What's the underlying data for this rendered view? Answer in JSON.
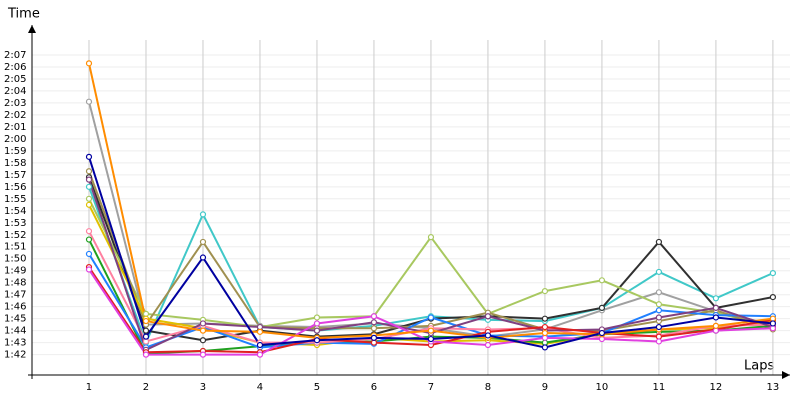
{
  "chart_data": {
    "type": "line",
    "y_label": "Time",
    "x_label": "Laps",
    "x": [
      1,
      2,
      3,
      4,
      5,
      6,
      7,
      8,
      9,
      10,
      11,
      12,
      13
    ],
    "xlim": [
      0,
      13.3
    ],
    "xticks": [
      1,
      2,
      3,
      4,
      5,
      6,
      7,
      8,
      9,
      10,
      11,
      12,
      13
    ],
    "ylim": [
      100.3,
      129.5
    ],
    "yticks": [
      {
        "value": 102,
        "label": "1:42"
      },
      {
        "value": 103,
        "label": "1:43"
      },
      {
        "value": 104,
        "label": "1:44"
      },
      {
        "value": 105,
        "label": "1:45"
      },
      {
        "value": 106,
        "label": "1:46"
      },
      {
        "value": 107,
        "label": "1:47"
      },
      {
        "value": 108,
        "label": "1:48"
      },
      {
        "value": 109,
        "label": "1:49"
      },
      {
        "value": 110,
        "label": "1:50"
      },
      {
        "value": 111,
        "label": "1:51"
      },
      {
        "value": 112,
        "label": "1:52"
      },
      {
        "value": 113,
        "label": "1:53"
      },
      {
        "value": 114,
        "label": "1:54"
      },
      {
        "value": 115,
        "label": "1:55"
      },
      {
        "value": 116,
        "label": "1:56"
      },
      {
        "value": 117,
        "label": "1:57"
      },
      {
        "value": 118,
        "label": "1:58"
      },
      {
        "value": 119,
        "label": "1:59"
      },
      {
        "value": 120,
        "label": "2:00"
      },
      {
        "value": 121,
        "label": "2:01"
      },
      {
        "value": 122,
        "label": "2:02"
      },
      {
        "value": 123,
        "label": "2:03"
      },
      {
        "value": 124,
        "label": "2:04"
      },
      {
        "value": 125,
        "label": "2:05"
      },
      {
        "value": 126,
        "label": "2:06"
      },
      {
        "value": 127,
        "label": "2:07"
      }
    ],
    "grid": true,
    "series": [
      {
        "color": "#a0a0a0",
        "values": [
          123.1,
          104.5,
          104.6,
          104.4,
          104.3,
          104.6,
          104.2,
          103.5,
          104.1,
          105.7,
          107.2,
          105.6,
          104.5
        ]
      },
      {
        "color": "#40c8c8",
        "values": [
          116.0,
          103.0,
          113.7,
          104.3,
          104.0,
          104.4,
          105.2,
          104.9,
          104.8,
          105.9,
          108.9,
          106.7,
          108.8
        ]
      },
      {
        "color": "#303030",
        "values": [
          116.8,
          104.0,
          103.2,
          104.0,
          103.5,
          103.7,
          105.0,
          105.2,
          105.0,
          105.9,
          111.4,
          105.9,
          106.8
        ]
      },
      {
        "color": "#a8c860",
        "values": [
          115.0,
          105.4,
          104.9,
          104.3,
          105.1,
          105.2,
          111.8,
          105.4,
          107.3,
          108.2,
          106.2,
          105.5,
          104.3
        ]
      },
      {
        "color": "#a09050",
        "values": [
          117.3,
          104.5,
          111.4,
          104.3,
          104.2,
          104.2,
          104.4,
          105.5,
          104.1,
          104.0,
          104.8,
          105.7,
          104.1
        ]
      },
      {
        "color": "#e0c000",
        "values": [
          114.5,
          105.0,
          104.2,
          103.0,
          102.8,
          103.4,
          103.1,
          103.2,
          102.9,
          103.7,
          104.1,
          104.2,
          104.8
        ]
      },
      {
        "color": "#20a020",
        "values": [
          111.6,
          102.1,
          102.3,
          102.7,
          103.0,
          103.1,
          103.5,
          103.4,
          103.0,
          103.7,
          103.9,
          104.0,
          104.4
        ]
      },
      {
        "color": "#2080ff",
        "values": [
          110.4,
          102.6,
          104.3,
          102.6,
          103.0,
          102.9,
          105.1,
          103.6,
          103.5,
          103.8,
          105.7,
          105.3,
          105.2
        ]
      },
      {
        "color": "#ff80a0",
        "values": [
          112.3,
          103.1,
          104.4,
          103.0,
          103.0,
          103.3,
          104.2,
          104.1,
          104.2,
          103.4,
          103.6,
          104.4,
          104.5
        ]
      },
      {
        "color": "#804080",
        "values": [
          116.6,
          102.4,
          104.6,
          104.3,
          104.0,
          104.7,
          103.8,
          105.2,
          104.0,
          104.1,
          105.1,
          105.9,
          104.3
        ]
      },
      {
        "color": "#e02020",
        "values": [
          109.3,
          102.2,
          102.3,
          102.2,
          103.3,
          103.0,
          102.8,
          103.9,
          104.3,
          103.8,
          103.5,
          104.1,
          104.9
        ]
      },
      {
        "color": "#e040e0",
        "values": [
          109.1,
          102.0,
          102.0,
          102.0,
          104.6,
          105.2,
          103.1,
          102.8,
          103.4,
          103.3,
          103.1,
          104.0,
          104.2
        ]
      },
      {
        "color": "#ff8c00",
        "values": [
          126.3,
          104.8,
          104.0,
          103.9,
          103.4,
          103.6,
          104.0,
          103.4,
          103.8,
          103.7,
          104.1,
          104.4,
          105.0
        ]
      },
      {
        "color": "#0000a0",
        "values": [
          118.5,
          103.5,
          110.1,
          102.8,
          103.2,
          103.4,
          103.3,
          103.6,
          102.6,
          103.8,
          104.3,
          105.1,
          104.6
        ]
      }
    ]
  }
}
